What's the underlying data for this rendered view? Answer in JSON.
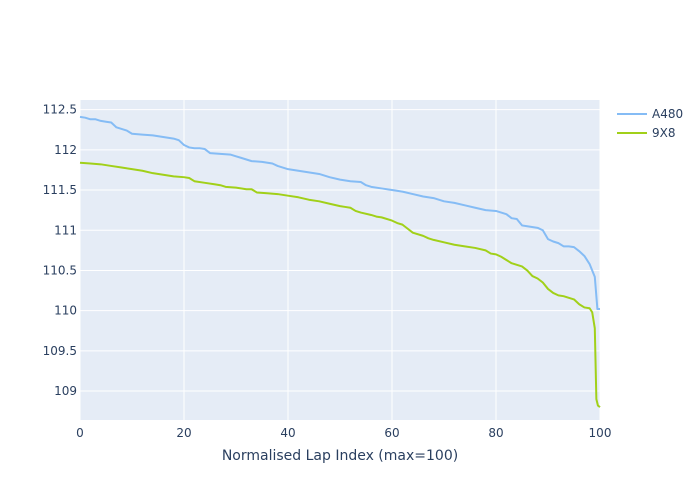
{
  "chart_data": {
    "type": "line",
    "title": "",
    "xlabel": "Normalised Lap Index (max=100)",
    "ylabel": "",
    "xlim": [
      0,
      100
    ],
    "ylim": [
      108.64,
      112.62
    ],
    "x_ticks": [
      0,
      20,
      40,
      60,
      80,
      100
    ],
    "x_tick_labels": [
      "0",
      "20",
      "40",
      "60",
      "80",
      "100"
    ],
    "y_ticks": [
      109,
      109.5,
      110,
      110.5,
      111,
      111.5,
      112,
      112.5
    ],
    "y_tick_labels": [
      "109",
      "109.5",
      "110",
      "110.5",
      "111",
      "111.5",
      "112",
      "112.5"
    ],
    "grid": true,
    "legend_position": "top-right",
    "plot_bgcolor": "#e5ecf6",
    "series": [
      {
        "name": "A480",
        "color": "#85bcf5",
        "x": [
          0,
          1,
          2,
          3,
          4,
          5,
          6,
          7,
          8,
          9,
          10,
          12,
          14,
          16,
          18,
          19,
          20,
          21,
          22,
          23,
          24,
          25,
          27,
          29,
          30,
          31,
          32,
          33,
          35,
          37,
          38,
          39,
          40,
          42,
          44,
          46,
          48,
          50,
          52,
          54,
          55,
          56,
          58,
          60,
          62,
          64,
          66,
          68,
          70,
          72,
          74,
          76,
          78,
          80,
          82,
          83,
          84,
          85,
          86,
          88,
          89,
          90,
          91,
          92,
          93,
          94,
          95,
          96,
          97,
          98,
          99,
          99.5,
          100
        ],
        "values": [
          112.41,
          112.4,
          112.38,
          112.38,
          112.36,
          112.35,
          112.34,
          112.28,
          112.26,
          112.24,
          112.2,
          112.19,
          112.18,
          112.16,
          112.14,
          112.12,
          112.06,
          112.03,
          112.02,
          112.02,
          112.01,
          111.96,
          111.95,
          111.94,
          111.92,
          111.9,
          111.88,
          111.86,
          111.85,
          111.83,
          111.8,
          111.78,
          111.76,
          111.74,
          111.72,
          111.7,
          111.66,
          111.63,
          111.61,
          111.6,
          111.56,
          111.54,
          111.52,
          111.5,
          111.48,
          111.45,
          111.42,
          111.4,
          111.36,
          111.34,
          111.31,
          111.28,
          111.25,
          111.24,
          111.2,
          111.15,
          111.14,
          111.06,
          111.05,
          111.03,
          111.0,
          110.89,
          110.86,
          110.84,
          110.8,
          110.8,
          110.79,
          110.74,
          110.68,
          110.58,
          110.42,
          110.02,
          110.02
        ]
      },
      {
        "name": "9X8",
        "color": "#a1d019",
        "x": [
          0,
          2,
          4,
          6,
          8,
          10,
          12,
          14,
          16,
          18,
          20,
          21,
          22,
          24,
          26,
          27,
          28,
          30,
          32,
          33,
          34,
          36,
          38,
          40,
          42,
          44,
          46,
          48,
          50,
          51,
          52,
          53,
          54,
          56,
          57,
          58,
          60,
          61,
          62,
          63,
          64,
          66,
          67,
          68,
          70,
          72,
          74,
          76,
          78,
          79,
          80,
          81,
          82,
          83,
          84,
          85,
          86,
          87,
          88,
          89,
          90,
          91,
          92,
          93,
          94,
          95,
          96,
          97,
          98,
          98.5,
          99,
          99.3,
          99.6,
          100
        ],
        "values": [
          111.84,
          111.83,
          111.82,
          111.8,
          111.78,
          111.76,
          111.74,
          111.71,
          111.69,
          111.67,
          111.66,
          111.65,
          111.61,
          111.59,
          111.57,
          111.56,
          111.54,
          111.53,
          111.51,
          111.51,
          111.47,
          111.46,
          111.45,
          111.43,
          111.41,
          111.38,
          111.36,
          111.33,
          111.3,
          111.29,
          111.28,
          111.24,
          111.22,
          111.19,
          111.17,
          111.16,
          111.12,
          111.09,
          111.07,
          111.02,
          110.97,
          110.93,
          110.9,
          110.88,
          110.85,
          110.82,
          110.8,
          110.78,
          110.75,
          110.71,
          110.7,
          110.67,
          110.63,
          110.59,
          110.57,
          110.55,
          110.5,
          110.43,
          110.4,
          110.35,
          110.27,
          110.22,
          110.19,
          110.18,
          110.16,
          110.14,
          110.08,
          110.04,
          110.03,
          109.98,
          109.78,
          108.9,
          108.82,
          108.8
        ]
      }
    ]
  }
}
